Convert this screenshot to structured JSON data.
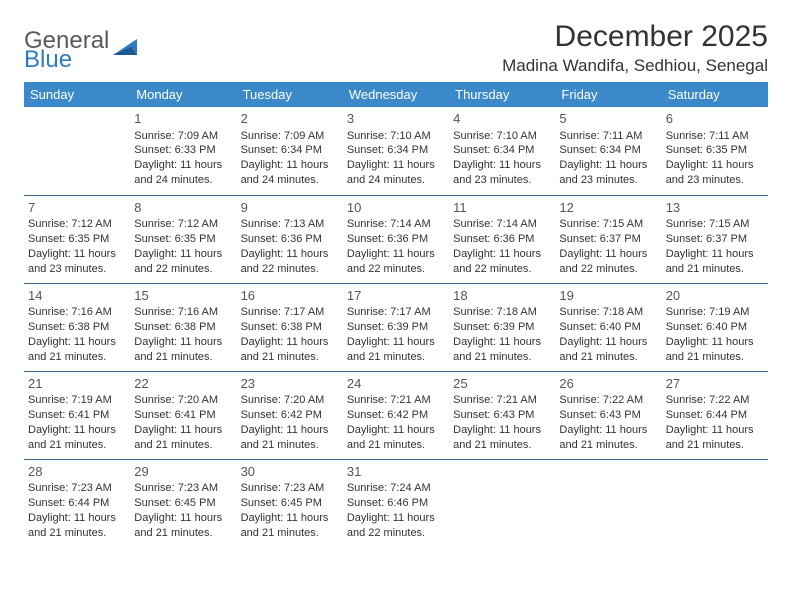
{
  "brand": {
    "part1": "General",
    "part2": "Blue"
  },
  "title": "December 2025",
  "location": "Madina Wandifa, Sedhiou, Senegal",
  "colors": {
    "header_bg": "#3b89c9",
    "header_text": "#ffffff",
    "divider": "#3b6f9a",
    "text": "#333333",
    "logo_gray": "#5a5a5a",
    "logo_blue": "#2f7bbf"
  },
  "dayNames": [
    "Sunday",
    "Monday",
    "Tuesday",
    "Wednesday",
    "Thursday",
    "Friday",
    "Saturday"
  ],
  "weeks": [
    [
      {
        "day": "",
        "sunrise": "",
        "sunset": "",
        "daylight": ""
      },
      {
        "day": "1",
        "sunrise": "Sunrise: 7:09 AM",
        "sunset": "Sunset: 6:33 PM",
        "daylight": "Daylight: 11 hours and 24 minutes."
      },
      {
        "day": "2",
        "sunrise": "Sunrise: 7:09 AM",
        "sunset": "Sunset: 6:34 PM",
        "daylight": "Daylight: 11 hours and 24 minutes."
      },
      {
        "day": "3",
        "sunrise": "Sunrise: 7:10 AM",
        "sunset": "Sunset: 6:34 PM",
        "daylight": "Daylight: 11 hours and 24 minutes."
      },
      {
        "day": "4",
        "sunrise": "Sunrise: 7:10 AM",
        "sunset": "Sunset: 6:34 PM",
        "daylight": "Daylight: 11 hours and 23 minutes."
      },
      {
        "day": "5",
        "sunrise": "Sunrise: 7:11 AM",
        "sunset": "Sunset: 6:34 PM",
        "daylight": "Daylight: 11 hours and 23 minutes."
      },
      {
        "day": "6",
        "sunrise": "Sunrise: 7:11 AM",
        "sunset": "Sunset: 6:35 PM",
        "daylight": "Daylight: 11 hours and 23 minutes."
      }
    ],
    [
      {
        "day": "7",
        "sunrise": "Sunrise: 7:12 AM",
        "sunset": "Sunset: 6:35 PM",
        "daylight": "Daylight: 11 hours and 23 minutes."
      },
      {
        "day": "8",
        "sunrise": "Sunrise: 7:12 AM",
        "sunset": "Sunset: 6:35 PM",
        "daylight": "Daylight: 11 hours and 22 minutes."
      },
      {
        "day": "9",
        "sunrise": "Sunrise: 7:13 AM",
        "sunset": "Sunset: 6:36 PM",
        "daylight": "Daylight: 11 hours and 22 minutes."
      },
      {
        "day": "10",
        "sunrise": "Sunrise: 7:14 AM",
        "sunset": "Sunset: 6:36 PM",
        "daylight": "Daylight: 11 hours and 22 minutes."
      },
      {
        "day": "11",
        "sunrise": "Sunrise: 7:14 AM",
        "sunset": "Sunset: 6:36 PM",
        "daylight": "Daylight: 11 hours and 22 minutes."
      },
      {
        "day": "12",
        "sunrise": "Sunrise: 7:15 AM",
        "sunset": "Sunset: 6:37 PM",
        "daylight": "Daylight: 11 hours and 22 minutes."
      },
      {
        "day": "13",
        "sunrise": "Sunrise: 7:15 AM",
        "sunset": "Sunset: 6:37 PM",
        "daylight": "Daylight: 11 hours and 21 minutes."
      }
    ],
    [
      {
        "day": "14",
        "sunrise": "Sunrise: 7:16 AM",
        "sunset": "Sunset: 6:38 PM",
        "daylight": "Daylight: 11 hours and 21 minutes."
      },
      {
        "day": "15",
        "sunrise": "Sunrise: 7:16 AM",
        "sunset": "Sunset: 6:38 PM",
        "daylight": "Daylight: 11 hours and 21 minutes."
      },
      {
        "day": "16",
        "sunrise": "Sunrise: 7:17 AM",
        "sunset": "Sunset: 6:38 PM",
        "daylight": "Daylight: 11 hours and 21 minutes."
      },
      {
        "day": "17",
        "sunrise": "Sunrise: 7:17 AM",
        "sunset": "Sunset: 6:39 PM",
        "daylight": "Daylight: 11 hours and 21 minutes."
      },
      {
        "day": "18",
        "sunrise": "Sunrise: 7:18 AM",
        "sunset": "Sunset: 6:39 PM",
        "daylight": "Daylight: 11 hours and 21 minutes."
      },
      {
        "day": "19",
        "sunrise": "Sunrise: 7:18 AM",
        "sunset": "Sunset: 6:40 PM",
        "daylight": "Daylight: 11 hours and 21 minutes."
      },
      {
        "day": "20",
        "sunrise": "Sunrise: 7:19 AM",
        "sunset": "Sunset: 6:40 PM",
        "daylight": "Daylight: 11 hours and 21 minutes."
      }
    ],
    [
      {
        "day": "21",
        "sunrise": "Sunrise: 7:19 AM",
        "sunset": "Sunset: 6:41 PM",
        "daylight": "Daylight: 11 hours and 21 minutes."
      },
      {
        "day": "22",
        "sunrise": "Sunrise: 7:20 AM",
        "sunset": "Sunset: 6:41 PM",
        "daylight": "Daylight: 11 hours and 21 minutes."
      },
      {
        "day": "23",
        "sunrise": "Sunrise: 7:20 AM",
        "sunset": "Sunset: 6:42 PM",
        "daylight": "Daylight: 11 hours and 21 minutes."
      },
      {
        "day": "24",
        "sunrise": "Sunrise: 7:21 AM",
        "sunset": "Sunset: 6:42 PM",
        "daylight": "Daylight: 11 hours and 21 minutes."
      },
      {
        "day": "25",
        "sunrise": "Sunrise: 7:21 AM",
        "sunset": "Sunset: 6:43 PM",
        "daylight": "Daylight: 11 hours and 21 minutes."
      },
      {
        "day": "26",
        "sunrise": "Sunrise: 7:22 AM",
        "sunset": "Sunset: 6:43 PM",
        "daylight": "Daylight: 11 hours and 21 minutes."
      },
      {
        "day": "27",
        "sunrise": "Sunrise: 7:22 AM",
        "sunset": "Sunset: 6:44 PM",
        "daylight": "Daylight: 11 hours and 21 minutes."
      }
    ],
    [
      {
        "day": "28",
        "sunrise": "Sunrise: 7:23 AM",
        "sunset": "Sunset: 6:44 PM",
        "daylight": "Daylight: 11 hours and 21 minutes."
      },
      {
        "day": "29",
        "sunrise": "Sunrise: 7:23 AM",
        "sunset": "Sunset: 6:45 PM",
        "daylight": "Daylight: 11 hours and 21 minutes."
      },
      {
        "day": "30",
        "sunrise": "Sunrise: 7:23 AM",
        "sunset": "Sunset: 6:45 PM",
        "daylight": "Daylight: 11 hours and 21 minutes."
      },
      {
        "day": "31",
        "sunrise": "Sunrise: 7:24 AM",
        "sunset": "Sunset: 6:46 PM",
        "daylight": "Daylight: 11 hours and 22 minutes."
      },
      {
        "day": "",
        "sunrise": "",
        "sunset": "",
        "daylight": ""
      },
      {
        "day": "",
        "sunrise": "",
        "sunset": "",
        "daylight": ""
      },
      {
        "day": "",
        "sunrise": "",
        "sunset": "",
        "daylight": ""
      }
    ]
  ]
}
